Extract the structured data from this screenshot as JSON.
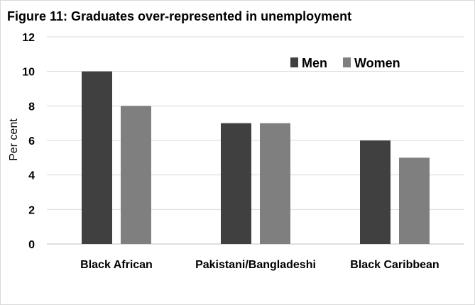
{
  "chart_data": {
    "type": "bar",
    "title": "Figure 11: Graduates over-represented in unemployment",
    "xlabel": "",
    "ylabel": "Per cent",
    "categories": [
      "Black African",
      "Pakistani/Bangladeshi",
      "Black Caribbean"
    ],
    "series": [
      {
        "name": "Men",
        "values": [
          10,
          7,
          6
        ],
        "color": "#404040"
      },
      {
        "name": "Women",
        "values": [
          8,
          7,
          5
        ],
        "color": "#7f7f7f"
      }
    ],
    "ylim": [
      0,
      12
    ],
    "yticks": [
      0,
      2,
      4,
      6,
      8,
      10,
      12
    ],
    "grid": true,
    "legend_position": "top-right"
  }
}
